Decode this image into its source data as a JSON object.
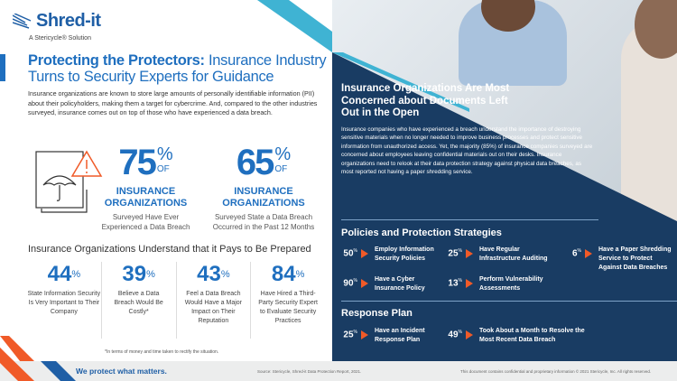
{
  "logo": {
    "name": "Shred-it",
    "tagline": "A Stericycle® Solution"
  },
  "title": {
    "bold": "Protecting the Protectors:",
    "rest": " Insurance Industry Turns to Security Experts for Guidance"
  },
  "intro": "Insurance organizations are known to store large amounts of personally identifiable information (PII) about their policyholders, making them a target for cybercrime. And, compared to the other industries surveyed, insurance comes out on top of those who have experienced a data breach.",
  "stats": [
    {
      "value": "75",
      "unit": "%",
      "of": "OF",
      "org1": "INSURANCE",
      "org2": "ORGANIZATIONS",
      "sub1": "Surveyed Have Ever",
      "sub2": "Experienced a Data Breach"
    },
    {
      "value": "65",
      "unit": "%",
      "of": "OF",
      "org1": "INSURANCE",
      "org2": "ORGANIZATIONS",
      "sub1": "Surveyed State a Data Breach",
      "sub2": "Occurred in the Past 12 Months"
    }
  ],
  "prepared": {
    "heading": "Insurance Organizations Understand that it Pays to Be Prepared",
    "items": [
      {
        "value": "44",
        "unit": "%",
        "desc": "State Information Security Is Very Important to Their Company"
      },
      {
        "value": "39",
        "unit": "%",
        "desc": "Believe a Data Breach Would Be Costly*"
      },
      {
        "value": "43",
        "unit": "%",
        "desc": "Feel a Data Breach Would Have a Major Impact on Their Reputation"
      },
      {
        "value": "84",
        "unit": "%",
        "desc": "Have Hired a Third-Party Security Expert to Evaluate Security Practices"
      }
    ],
    "footnote": "*In terms of money and time taken to rectify the situation."
  },
  "concern": {
    "heading": "Insurance Organizations Are Most Concerned about Documents Left Out in the Open",
    "body": "Insurance companies who have experienced a breach understand the importance of destroying sensitive materials when no longer needed to improve business processes and protect sensitive information from unauthorized access. Yet, the majority (85%) of insurance companies surveyed are concerned about employees leaving confidential materials out on their desks. Insurance organizations need to relook at their data protection strategy against physical data breaches, as most reported not having a paper shredding service."
  },
  "policies": {
    "heading": "Policies and Protection Strategies",
    "items": [
      {
        "value": "50",
        "unit": "%",
        "text": "Employ Information Security Policies"
      },
      {
        "value": "90",
        "unit": "%",
        "text": "Have a Cyber Insurance Policy"
      },
      {
        "value": "25",
        "unit": "%",
        "text": "Have Regular Infrastructure Auditing"
      },
      {
        "value": "13",
        "unit": "%",
        "text": "Perform Vulnerability Assessments"
      },
      {
        "value": "6",
        "unit": "%",
        "text": "Have a Paper Shredding Service to Protect Against Data Breaches"
      }
    ]
  },
  "response": {
    "heading": "Response Plan",
    "items": [
      {
        "value": "25",
        "unit": "%",
        "text": "Have an Incident Response Plan"
      },
      {
        "value": "49",
        "unit": "%",
        "text": "Took About a Month to Resolve the Most Recent Data Breach"
      }
    ]
  },
  "footer": {
    "slogan": "We protect what matters.",
    "source": "Source: Stericycle, Shred-it Data Protection Report, 2021.",
    "confidential": "This document contains confidential and proprietary information © 2021 Stericycle, Inc. All rights reserved."
  },
  "colors": {
    "navy": "#193c63",
    "blue": "#1f6fbf",
    "orange": "#f05a28",
    "cyan": "#3fb3d3"
  }
}
